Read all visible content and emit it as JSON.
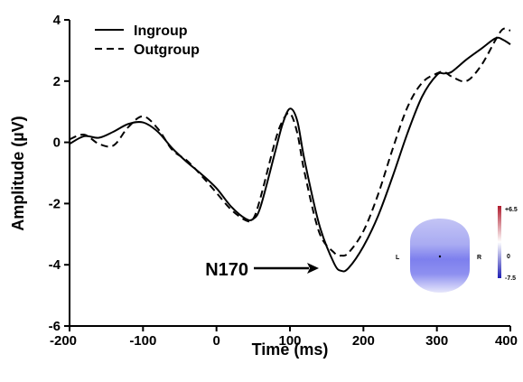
{
  "chart_data": {
    "type": "line",
    "xlabel": "Time (ms)",
    "ylabel": "Amplitude (µV)",
    "xlim": [
      -200,
      400
    ],
    "ylim": [
      -6,
      4
    ],
    "xticks": [
      "-200",
      "-100",
      "0",
      "100",
      "200",
      "300",
      "400"
    ],
    "yticks": [
      "-6",
      "-4",
      "-2",
      "0",
      "2",
      "4"
    ],
    "grid": false,
    "legend_position": "top-left",
    "series": [
      {
        "name": "Ingroup",
        "style": "solid",
        "color": "#000000",
        "x": [
          -200,
          -180,
          -160,
          -140,
          -120,
          -100,
          -80,
          -60,
          -40,
          -20,
          0,
          20,
          40,
          50,
          60,
          80,
          90,
          100,
          110,
          120,
          140,
          160,
          170,
          180,
          200,
          220,
          240,
          260,
          280,
          300,
          310,
          320,
          340,
          360,
          380,
          390,
          400
        ],
        "y": [
          -0.05,
          0.2,
          0.15,
          0.35,
          0.6,
          0.65,
          0.35,
          -0.2,
          -0.65,
          -1.05,
          -1.5,
          -2.1,
          -2.5,
          -2.5,
          -2.1,
          -0.3,
          0.6,
          1.1,
          0.7,
          -0.6,
          -2.7,
          -3.95,
          -4.2,
          -4.1,
          -3.4,
          -2.4,
          -1.1,
          0.3,
          1.5,
          2.2,
          2.25,
          2.3,
          2.7,
          3.05,
          3.4,
          3.35,
          3.2
        ]
      },
      {
        "name": "Outgroup",
        "style": "dashed",
        "color": "#000000",
        "x": [
          -200,
          -180,
          -160,
          -140,
          -120,
          -100,
          -80,
          -60,
          -40,
          -20,
          0,
          20,
          40,
          50,
          60,
          80,
          90,
          100,
          110,
          120,
          140,
          160,
          170,
          180,
          200,
          220,
          240,
          260,
          280,
          300,
          310,
          320,
          340,
          360,
          380,
          390,
          400
        ],
        "y": [
          0.1,
          0.25,
          -0.05,
          -0.1,
          0.5,
          0.85,
          0.45,
          -0.25,
          -0.6,
          -1.1,
          -1.65,
          -2.2,
          -2.55,
          -2.5,
          -1.8,
          0.05,
          0.7,
          0.95,
          0.3,
          -1.0,
          -2.95,
          -3.6,
          -3.7,
          -3.6,
          -2.9,
          -1.7,
          -0.2,
          1.15,
          1.95,
          2.25,
          2.3,
          2.15,
          2.0,
          2.5,
          3.35,
          3.7,
          3.65
        ]
      }
    ],
    "annotations": [
      {
        "text": "N170",
        "arrow_to": [
          165,
          -4.15
        ]
      }
    ],
    "inset": {
      "description_labels": {
        "left": "L",
        "right": "R"
      },
      "colorbar_ticks": [
        "+6.5",
        "0",
        "-7.5"
      ],
      "colorbar_colors": {
        "top": "#b01c2e",
        "middle": "#ffffff",
        "bottom": "#1f1fb4"
      },
      "head_colors": {
        "light": "#b8b9f3",
        "mid": "#8c8ef0",
        "dark": "#5a5ced"
      }
    }
  }
}
